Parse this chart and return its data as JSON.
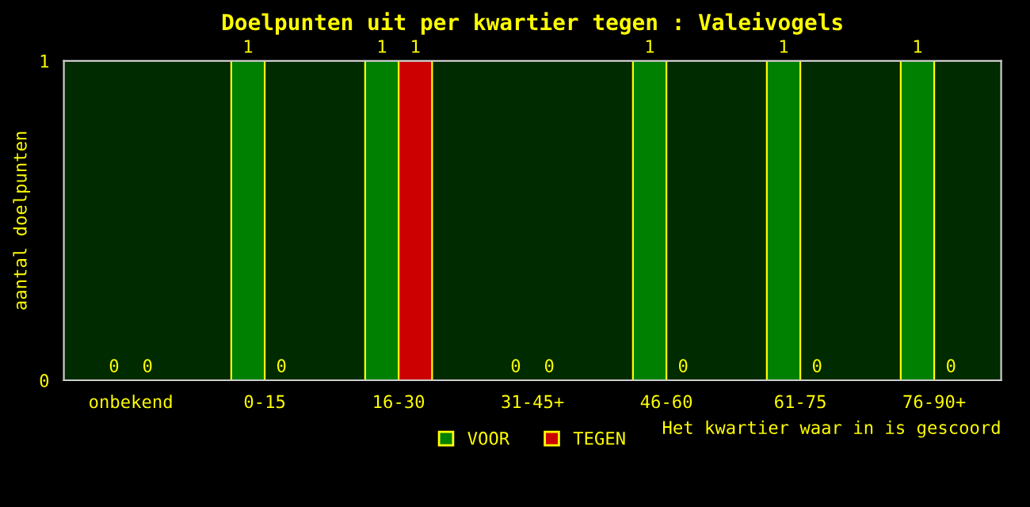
{
  "chart_data": {
    "type": "bar",
    "title": "Doelpunten uit per kwartier tegen : Valeivogels",
    "categories": [
      "onbekend",
      "0-15",
      "16-30",
      "31-45+",
      "46-60",
      "61-75",
      "76-90+"
    ],
    "series": [
      {
        "name": "VOOR",
        "color": "#008000",
        "values": [
          0,
          1,
          1,
          0,
          1,
          1,
          1
        ]
      },
      {
        "name": "TEGEN",
        "color": "#cc0000",
        "values": [
          0,
          0,
          1,
          0,
          0,
          0,
          0
        ]
      }
    ],
    "ylim": [
      0,
      1
    ],
    "yticks": [
      0,
      1
    ],
    "ylabel": "aantal doelpunten",
    "xlabel": "Het kwartier waar in is gescoord",
    "data_labels": true,
    "legend": "bottom",
    "grid": false
  }
}
